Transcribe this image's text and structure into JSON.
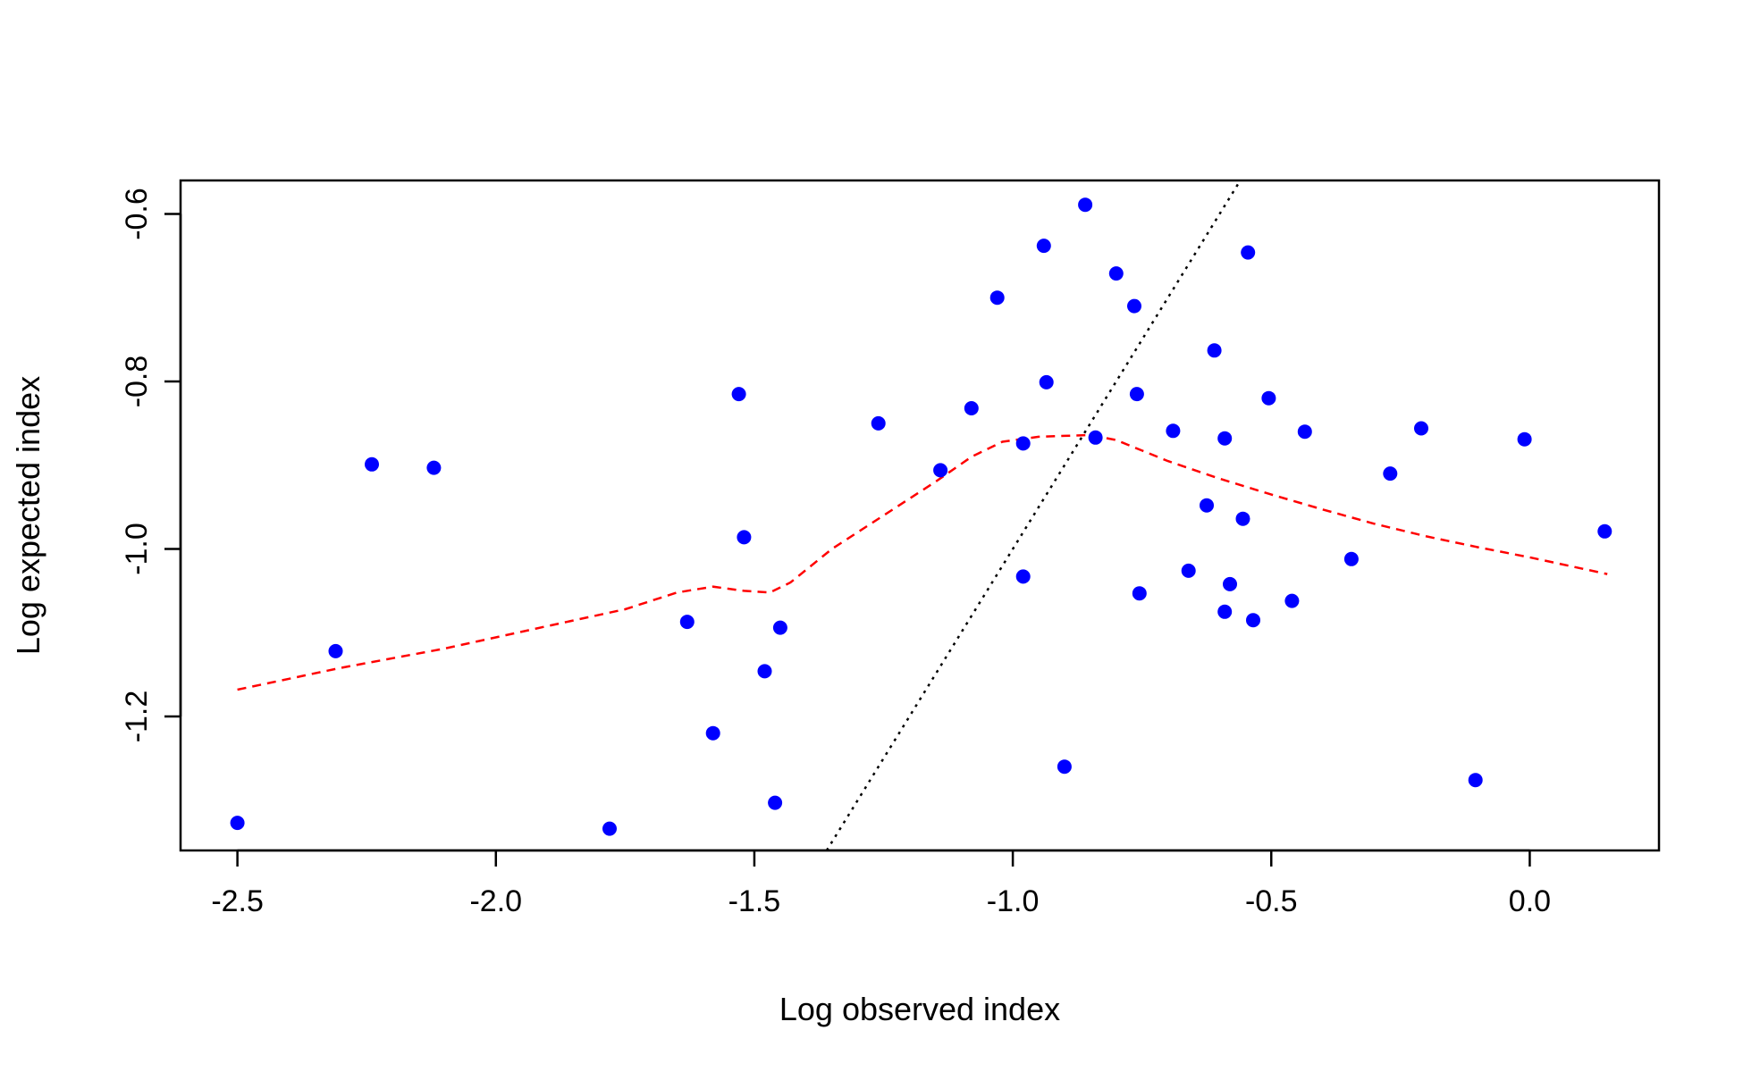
{
  "chart_data": {
    "type": "scatter",
    "title": "",
    "xlabel": "Log observed index",
    "ylabel": "Log expected index",
    "xlim": [
      -2.61,
      0.25
    ],
    "ylim": [
      -1.36,
      -0.56
    ],
    "xticks": [
      -2.5,
      -2.0,
      -1.5,
      -1.0,
      -0.5,
      0.0
    ],
    "xtick_labels": [
      "-2.5",
      "-2.0",
      "-1.5",
      "-1.0",
      "-0.5",
      "0.0"
    ],
    "yticks": [
      -1.2,
      -1.0,
      -0.8,
      -0.6
    ],
    "ytick_labels": [
      "-1.2",
      "-1.0",
      "-0.8",
      "-0.6"
    ],
    "grid": false,
    "legend": "none",
    "point_color": "#0000ff",
    "points": [
      {
        "x": -2.5,
        "y": -1.327
      },
      {
        "x": -2.31,
        "y": -1.122
      },
      {
        "x": -2.24,
        "y": -0.899
      },
      {
        "x": -2.12,
        "y": -0.903
      },
      {
        "x": -1.78,
        "y": -1.334
      },
      {
        "x": -1.63,
        "y": -1.087
      },
      {
        "x": -1.58,
        "y": -1.22
      },
      {
        "x": -1.53,
        "y": -0.815
      },
      {
        "x": -1.52,
        "y": -0.986
      },
      {
        "x": -1.48,
        "y": -1.146
      },
      {
        "x": -1.46,
        "y": -1.303
      },
      {
        "x": -1.45,
        "y": -1.094
      },
      {
        "x": -1.26,
        "y": -0.85
      },
      {
        "x": -1.14,
        "y": -0.906
      },
      {
        "x": -1.08,
        "y": -0.832
      },
      {
        "x": -1.03,
        "y": -0.7
      },
      {
        "x": -0.98,
        "y": -1.033
      },
      {
        "x": -0.98,
        "y": -0.874
      },
      {
        "x": -0.94,
        "y": -0.638
      },
      {
        "x": -0.935,
        "y": -0.801
      },
      {
        "x": -0.9,
        "y": -1.26
      },
      {
        "x": -0.86,
        "y": -0.589
      },
      {
        "x": -0.84,
        "y": -0.867
      },
      {
        "x": -0.8,
        "y": -0.671
      },
      {
        "x": -0.765,
        "y": -0.71
      },
      {
        "x": -0.76,
        "y": -0.815
      },
      {
        "x": -0.755,
        "y": -1.053
      },
      {
        "x": -0.69,
        "y": -0.859
      },
      {
        "x": -0.66,
        "y": -1.026
      },
      {
        "x": -0.625,
        "y": -0.948
      },
      {
        "x": -0.61,
        "y": -0.763
      },
      {
        "x": -0.59,
        "y": -1.075
      },
      {
        "x": -0.59,
        "y": -0.868
      },
      {
        "x": -0.58,
        "y": -1.042
      },
      {
        "x": -0.555,
        "y": -0.964
      },
      {
        "x": -0.545,
        "y": -0.646
      },
      {
        "x": -0.535,
        "y": -1.085
      },
      {
        "x": -0.505,
        "y": -0.82
      },
      {
        "x": -0.46,
        "y": -1.062
      },
      {
        "x": -0.435,
        "y": -0.86
      },
      {
        "x": -0.345,
        "y": -1.012
      },
      {
        "x": -0.27,
        "y": -0.91
      },
      {
        "x": -0.21,
        "y": -0.856
      },
      {
        "x": -0.105,
        "y": -1.276
      },
      {
        "x": -0.01,
        "y": -0.869
      },
      {
        "x": 0.145,
        "y": -0.979
      }
    ],
    "lines": [
      {
        "style": "dashed",
        "color": "#ff0000",
        "x": [
          -2.5,
          -2.3,
          -2.1,
          -1.9,
          -1.75,
          -1.65,
          -1.58,
          -1.52,
          -1.47,
          -1.43,
          -1.35,
          -1.25,
          -1.15,
          -1.08,
          -1.02,
          -0.95,
          -0.9,
          -0.85,
          -0.8,
          -0.7,
          -0.6,
          -0.5,
          -0.4,
          -0.3,
          -0.2,
          -0.1,
          0.0,
          0.15
        ],
        "y": [
          -1.168,
          -1.142,
          -1.119,
          -1.092,
          -1.072,
          -1.052,
          -1.045,
          -1.05,
          -1.052,
          -1.04,
          -1.0,
          -0.96,
          -0.92,
          -0.89,
          -0.872,
          -0.866,
          -0.865,
          -0.864,
          -0.87,
          -0.895,
          -0.916,
          -0.935,
          -0.953,
          -0.97,
          -0.985,
          -0.998,
          -1.01,
          -1.03
        ]
      },
      {
        "style": "dotted",
        "color": "#000000",
        "x": [
          -1.36,
          -0.56
        ],
        "y": [
          -1.36,
          -0.56
        ]
      }
    ]
  }
}
